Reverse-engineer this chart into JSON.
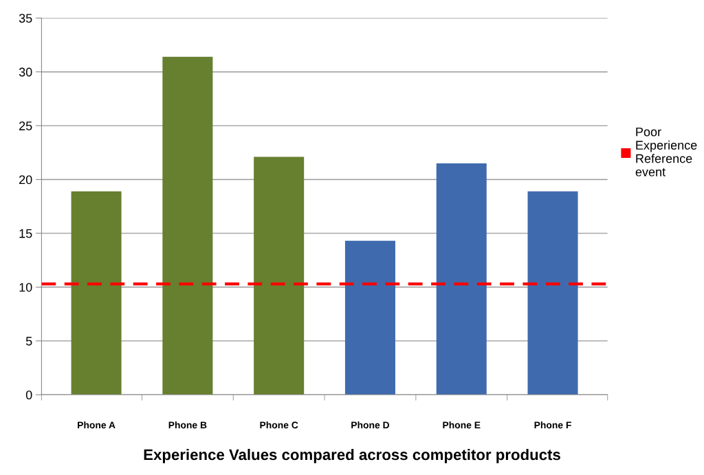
{
  "chart_data": {
    "type": "bar",
    "title": "Experience Values compared across competitor products",
    "categories": [
      "Phone A",
      "Phone B",
      "Phone C",
      "Phone D",
      "Phone E",
      "Phone F"
    ],
    "values": [
      18.9,
      31.4,
      22.1,
      14.3,
      21.5,
      18.9
    ],
    "colors": [
      "#66802f",
      "#66802f",
      "#66802f",
      "#3f6bae",
      "#3f6bae",
      "#3f6bae"
    ],
    "ylim": [
      0,
      35
    ],
    "yticks": [
      0,
      5,
      10,
      15,
      20,
      25,
      30,
      35
    ],
    "grid": "y",
    "legend": "right",
    "ref_lines": [
      {
        "axis": "y",
        "value": 10.3,
        "label": "Poor Experience Reference event",
        "color": "#ff0000",
        "line_style": "dashed"
      }
    ]
  }
}
